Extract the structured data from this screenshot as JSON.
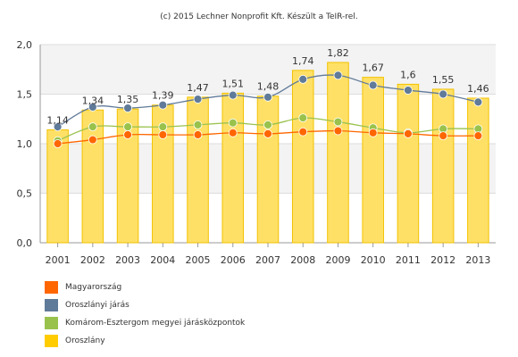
{
  "credit": "(c) 2015 Lechner Nonprofit Kft. Készült a TeIR-rel.",
  "chart_data": {
    "type": "bar",
    "categories": [
      "2001",
      "2002",
      "2003",
      "2004",
      "2005",
      "2006",
      "2007",
      "2008",
      "2009",
      "2010",
      "2011",
      "2012",
      "2013"
    ],
    "ylim": [
      0,
      2
    ],
    "yticks": [
      "0,0",
      "0,5",
      "1,0",
      "1,5",
      "2,0"
    ],
    "ytick_values": [
      0,
      0.5,
      1.0,
      1.5,
      2.0
    ],
    "grid": true,
    "legend_position": "bottom-left",
    "bar_series": {
      "name": "Oroszlány",
      "color": "#ffe066",
      "border_color": "#f2c200",
      "values": [
        1.14,
        1.34,
        1.35,
        1.39,
        1.47,
        1.51,
        1.48,
        1.74,
        1.82,
        1.67,
        1.6,
        1.55,
        1.46
      ],
      "labels": [
        "1,14",
        "1,34",
        "1,35",
        "1,39",
        "1,47",
        "1,51",
        "1,48",
        "1,74",
        "1,82",
        "1,67",
        "1,6",
        "1,55",
        "1,46"
      ]
    },
    "line_series": [
      {
        "name": "Magyarország",
        "color": "#ff6600",
        "values": [
          1.0,
          1.04,
          1.09,
          1.09,
          1.09,
          1.11,
          1.1,
          1.12,
          1.13,
          1.11,
          1.1,
          1.08,
          1.08
        ]
      },
      {
        "name": "Oroszlányi járás",
        "color": "#607a99",
        "values": [
          1.17,
          1.37,
          1.36,
          1.39,
          1.45,
          1.49,
          1.47,
          1.65,
          1.69,
          1.59,
          1.54,
          1.5,
          1.42
        ]
      },
      {
        "name": "Komárom-Esztergom megyei járásközpontok",
        "color": "#99c24d",
        "values": [
          1.03,
          1.17,
          1.17,
          1.17,
          1.19,
          1.21,
          1.19,
          1.26,
          1.22,
          1.16,
          1.11,
          1.15,
          1.15
        ]
      }
    ],
    "legend": [
      {
        "label": "Magyarország",
        "color": "#ff6600"
      },
      {
        "label": "Oroszlányi járás",
        "color": "#607a99"
      },
      {
        "label": "Komárom-Esztergom megyei járásközpontok",
        "color": "#99c24d"
      },
      {
        "label": "Oroszlány",
        "color": "#ffcc00"
      }
    ]
  }
}
